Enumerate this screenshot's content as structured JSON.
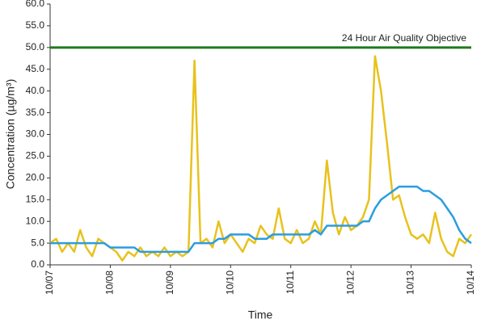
{
  "chart_data": {
    "type": "line",
    "xlabel": "Time",
    "ylabel": "Concentration (µg/m³)",
    "x": [
      0,
      0.1,
      0.2,
      0.3,
      0.4,
      0.5,
      0.6,
      0.7,
      0.8,
      0.9,
      1,
      1.1,
      1.2,
      1.3,
      1.4,
      1.5,
      1.6,
      1.7,
      1.8,
      1.9,
      2,
      2.1,
      2.2,
      2.3,
      2.4,
      2.5,
      2.6,
      2.7,
      2.8,
      2.9,
      3,
      3.1,
      3.2,
      3.3,
      3.4,
      3.5,
      3.6,
      3.7,
      3.8,
      3.9,
      4,
      4.1,
      4.2,
      4.3,
      4.4,
      4.5,
      4.6,
      4.7,
      4.8,
      4.9,
      5,
      5.1,
      5.2,
      5.3,
      5.4,
      5.5,
      5.6,
      5.7,
      5.8,
      5.9,
      6,
      6.1,
      6.2,
      6.3,
      6.4,
      6.5,
      6.6,
      6.7,
      6.8,
      6.9,
      7
    ],
    "series": [
      {
        "color": "#e8c21c",
        "values": [
          5,
          6,
          3,
          5,
          3,
          8,
          4,
          2,
          6,
          5,
          4,
          3,
          1,
          3,
          2,
          4,
          2,
          3,
          2,
          4,
          2,
          3,
          2,
          3,
          47,
          5,
          6,
          4,
          10,
          5,
          7,
          5,
          3,
          6,
          5,
          9,
          7,
          6,
          13,
          6,
          5,
          8,
          5,
          6,
          10,
          7,
          24,
          12,
          7,
          11,
          8,
          9,
          11,
          15,
          48,
          40,
          28,
          15,
          16,
          11,
          7,
          6,
          7,
          5,
          12,
          6,
          3,
          2,
          6,
          5,
          7
        ]
      },
      {
        "color": "#2a9de0",
        "values": [
          5,
          5,
          5,
          5,
          5,
          5,
          5,
          5,
          5,
          5,
          4,
          4,
          4,
          4,
          4,
          3,
          3,
          3,
          3,
          3,
          3,
          3,
          3,
          3,
          5,
          5,
          5,
          5,
          6,
          6,
          7,
          7,
          7,
          7,
          6,
          6,
          6,
          7,
          7,
          7,
          7,
          7,
          7,
          7,
          8,
          7,
          9,
          9,
          9,
          9,
          9,
          9,
          10,
          10,
          13,
          15,
          16,
          17,
          18,
          18,
          18,
          18,
          17,
          17,
          16,
          15,
          13,
          11,
          8,
          6,
          5
        ]
      }
    ],
    "reference_line": {
      "value": 50,
      "label": "24 Hour Air Quality Objective",
      "color": "#1f7a1f"
    },
    "xlim": [
      0,
      7
    ],
    "xticks": [
      {
        "value": 0,
        "label": "10/07"
      },
      {
        "value": 1,
        "label": "10/08"
      },
      {
        "value": 2,
        "label": "10/09"
      },
      {
        "value": 3,
        "label": "10/10"
      },
      {
        "value": 4,
        "label": "10/11"
      },
      {
        "value": 5,
        "label": "10/12"
      },
      {
        "value": 6,
        "label": "10/13"
      },
      {
        "value": 7,
        "label": "10/14"
      }
    ],
    "ylim": [
      0,
      60
    ],
    "yticks": [
      {
        "value": 0,
        "label": "0.0"
      },
      {
        "value": 5,
        "label": "5.0"
      },
      {
        "value": 10,
        "label": "10.0"
      },
      {
        "value": 15,
        "label": "15.0"
      },
      {
        "value": 20,
        "label": "20.0"
      },
      {
        "value": 25,
        "label": "25.0"
      },
      {
        "value": 30,
        "label": "30.0"
      },
      {
        "value": 35,
        "label": "35.0"
      },
      {
        "value": 40,
        "label": "40.0"
      },
      {
        "value": 45,
        "label": "45.0"
      },
      {
        "value": 50,
        "label": "50.0"
      },
      {
        "value": 55,
        "label": "55.0"
      },
      {
        "value": 60,
        "label": "60.0"
      }
    ]
  }
}
